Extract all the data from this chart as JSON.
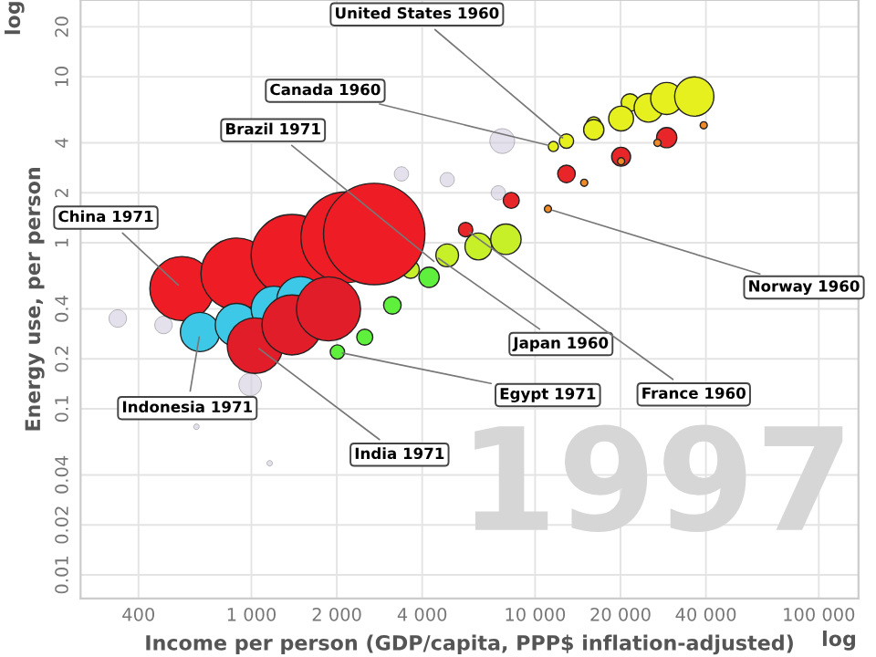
{
  "chart_data": {
    "type": "bubble",
    "xlabel": "Income per person (GDP/capita, PPP$ inflation-adjusted)",
    "ylabel": "Energy use, per person",
    "log": "xy",
    "grid": true,
    "legend": false,
    "marker": "circle",
    "xlim": [
      250,
      138000
    ],
    "ylim": [
      0.0072,
      29
    ],
    "xticks": [
      {
        "value": 400,
        "label": "400"
      },
      {
        "value": 1000,
        "label": "1 000"
      },
      {
        "value": 2000,
        "label": "2 000"
      },
      {
        "value": 4000,
        "label": "4 000"
      },
      {
        "value": 10000,
        "label": "10 000"
      },
      {
        "value": 20000,
        "label": "20 000"
      },
      {
        "value": 40000,
        "label": "40 000"
      },
      {
        "value": 100000,
        "label": "100 000"
      }
    ],
    "yticks": [
      0.01,
      0.02,
      0.04,
      0.1,
      0.2,
      0.4,
      1,
      2,
      4,
      10,
      20
    ],
    "series": [
      {
        "color": "#d2cce0",
        "x": [
          338,
          490,
          990,
          7660,
          7420,
          4900,
          3380,
          640,
          1160
        ],
        "values": [
          0.35,
          0.32,
          0.14,
          4.1,
          2.0,
          2.4,
          2.6,
          0.078,
          0.047
        ],
        "sizes": [
          0.03,
          0.03,
          0.05,
          0.06,
          0.02,
          0.02,
          0.02,
          0.003,
          0.003
        ]
      },
      {
        "color": "#e6f01e",
        "x": [
          11600,
          16100,
          21600
        ],
        "values": [
          3.8,
          5.2,
          7.0
        ],
        "sizes": [
          0.01,
          0.02,
          0.03
        ]
      },
      {
        "color": "#e6f01e",
        "x": [
          12900,
          16100,
          20100,
          25100,
          29100,
          36400
        ],
        "values": [
          4.1,
          4.8,
          5.6,
          6.5,
          7.4,
          7.6
        ],
        "sizes": [
          0.02,
          0.04,
          0.06,
          0.08,
          0.1,
          0.15
        ]
      },
      {
        "color": "#e8262a",
        "x": [
          5690,
          8240,
          12900,
          20100,
          29100
        ],
        "values": [
          1.2,
          1.8,
          2.6,
          3.3,
          4.3
        ],
        "sizes": [
          0.02,
          0.025,
          0.03,
          0.035,
          0.04
        ]
      },
      {
        "color": "#f08a28",
        "x": [
          11100,
          14900,
          20100,
          27000,
          39300
        ],
        "values": [
          1.6,
          2.3,
          3.1,
          4.0,
          5.1
        ],
        "sizes": [
          0.005,
          0.005,
          0.005,
          0.005,
          0.005
        ]
      },
      {
        "color": "#c8f028",
        "x": [
          3640,
          4900,
          6310,
          7890
        ],
        "values": [
          0.69,
          0.84,
          0.95,
          1.05
        ],
        "sizes": [
          0.03,
          0.05,
          0.07,
          0.09
        ]
      },
      {
        "color": "#5ef03c",
        "x": [
          2010,
          2510,
          3140,
          4230
        ],
        "values": [
          0.22,
          0.27,
          0.42,
          0.62
        ],
        "sizes": [
          0.02,
          0.025,
          0.03,
          0.04
        ]
      },
      {
        "color": "#ee1c25",
        "x": [
          569,
          888,
          1390,
          2160,
          2710
        ],
        "values": [
          0.53,
          0.65,
          0.84,
          1.08,
          1.13
        ],
        "sizes": [
          0.4,
          0.5,
          0.65,
          0.8,
          1
        ]
      },
      {
        "color": "#3cc8e6",
        "x": [
          659,
          888,
          1200,
          1490
        ],
        "values": [
          0.29,
          0.32,
          0.4,
          0.45
        ],
        "sizes": [
          0.15,
          0.18,
          0.2,
          0.22
        ]
      },
      {
        "color": "#e11d2a",
        "x": [
          1030,
          1390,
          1870
        ],
        "values": [
          0.24,
          0.32,
          0.4
        ],
        "sizes": [
          0.3,
          0.35,
          0.4
        ]
      }
    ],
    "annotations": [
      "1997",
      "log",
      "log",
      {
        "text": "United States 1960",
        "x": 12900,
        "y": 4.1
      },
      {
        "text": "Canada 1960",
        "x": 11600,
        "y": 3.8
      },
      {
        "text": "Brazil 1971",
        "x": 4540,
        "y": 0.74
      },
      {
        "text": "China 1971",
        "x": 569,
        "y": 0.53
      },
      {
        "text": "Indonesia 1971",
        "x": 659,
        "y": 0.29
      },
      {
        "text": "India 1971",
        "x": 1030,
        "y": 0.24
      },
      {
        "text": "Egypt 1971",
        "x": 2010,
        "y": 0.22
      },
      {
        "text": "Japan 1960",
        "x": 4410,
        "y": 0.84
      },
      {
        "text": "Norway 1960",
        "x": 11100,
        "y": 1.6
      },
      {
        "text": "France 1960",
        "x": 5690,
        "y": 1.2
      }
    ]
  }
}
